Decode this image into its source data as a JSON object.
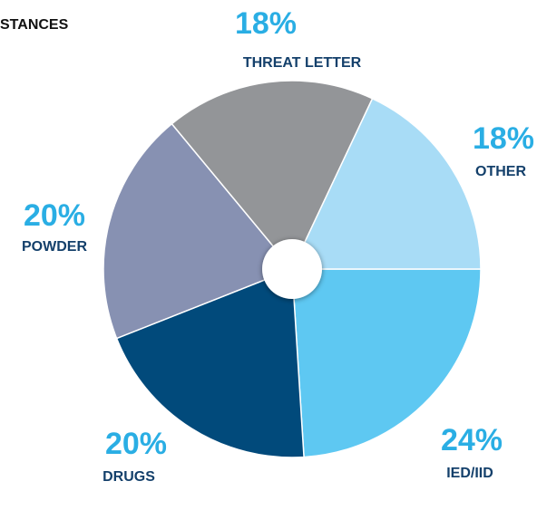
{
  "chart_data": {
    "type": "pie",
    "title": "STANCES",
    "categories": [
      "IED/IID",
      "DRUGS",
      "POWDER",
      "THREAT LETTER",
      "OTHER"
    ],
    "values": [
      24,
      20,
      20,
      18,
      18
    ],
    "value_labels": [
      "24%",
      "20%",
      "20%",
      "18%",
      "18%"
    ],
    "colors": [
      "#5ec8f2",
      "#014a7b",
      "#8791b2",
      "#939598",
      "#a8dcf6"
    ]
  }
}
